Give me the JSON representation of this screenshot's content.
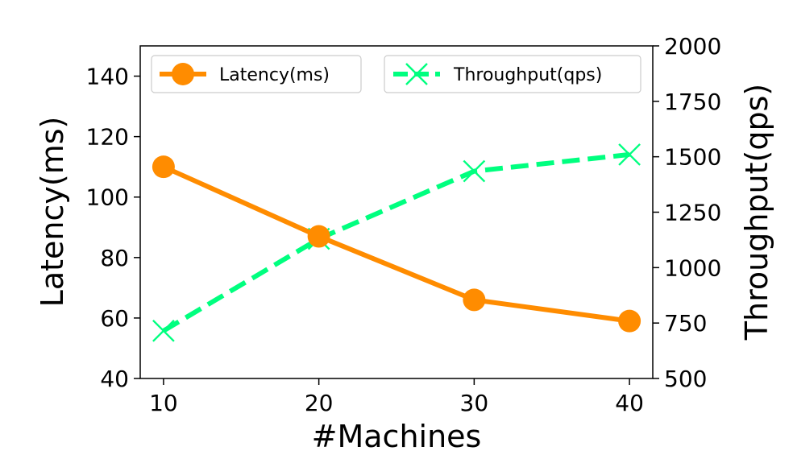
{
  "chart_data": {
    "type": "line",
    "title": "",
    "xlabel": "#Machines",
    "ylabel_left": "Latency(ms)",
    "ylabel_right": "Throughput(qps)",
    "x": [
      10,
      20,
      30,
      40
    ],
    "x_ticks": [
      "10",
      "20",
      "30",
      "40"
    ],
    "y_left_ticks": [
      "40",
      "60",
      "80",
      "100",
      "120",
      "140"
    ],
    "y_right_ticks": [
      "500",
      "750",
      "1000",
      "1250",
      "1500",
      "1750",
      "2000"
    ],
    "ylim_left": [
      40,
      150
    ],
    "ylim_right": [
      500,
      2000
    ],
    "series": [
      {
        "name": "Latency(ms)",
        "axis": "left",
        "values": [
          110,
          87,
          66,
          59
        ],
        "color": "#ff8c00",
        "marker": "circle",
        "linestyle": "solid"
      },
      {
        "name": "Throughput(qps)",
        "axis": "right",
        "values": [
          715,
          1130,
          1435,
          1510
        ],
        "color": "#00ff7f",
        "marker": "x",
        "linestyle": "dashed"
      }
    ],
    "legend": "top",
    "grid": false
  }
}
